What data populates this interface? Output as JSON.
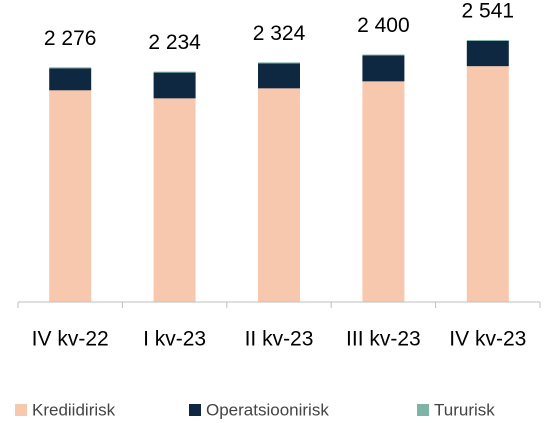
{
  "chart_data": {
    "type": "stacked_bar",
    "categories": [
      "IV kv-22",
      "I kv-23",
      "II kv-23",
      "III kv-23",
      "IV kv-23"
    ],
    "series": [
      {
        "name": "Krediidirisk",
        "color": "#f8c8ae",
        "values": [
          2053,
          1975,
          2072,
          2140,
          2287
        ]
      },
      {
        "name": "Operatsioonirisk",
        "color": "#0e2841",
        "values": [
          214,
          250,
          243,
          251,
          245
        ]
      },
      {
        "name": "Tururisk",
        "color": "#7fb3a6",
        "values": [
          9,
          9,
          9,
          9,
          9
        ]
      }
    ],
    "totals": [
      2276,
      2234,
      2324,
      2400,
      2541
    ],
    "total_labels": [
      "2 276",
      "2 234",
      "2 324",
      "2 400",
      "2 541"
    ],
    "legend": "bottom"
  }
}
